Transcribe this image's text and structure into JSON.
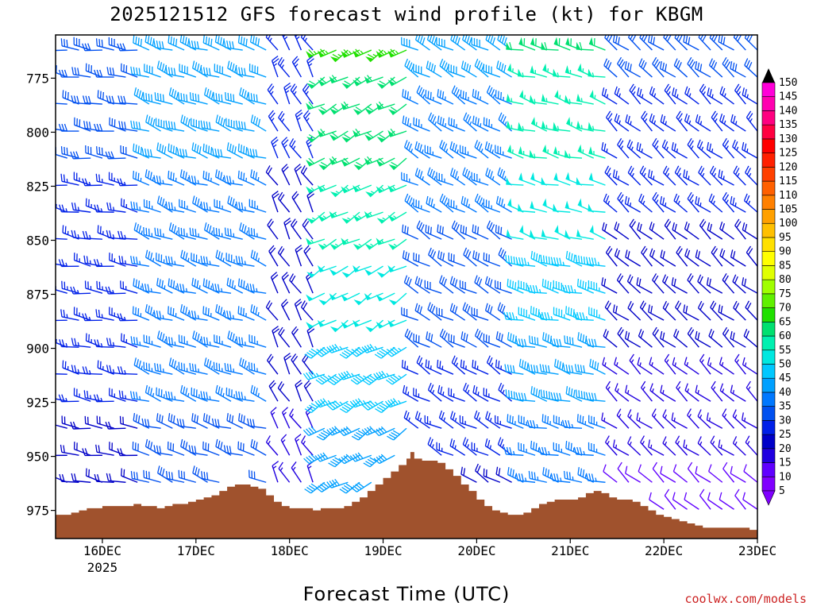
{
  "title": "2025121512 GFS forecast wind profile (kt) for KBGM",
  "xlabel": "Forecast Time (UTC)",
  "credit": "coolwx.com/models",
  "chart_data": {
    "type": "wind-barb-profile",
    "units": "kt",
    "x_ticks": [
      {
        "label": "16DEC",
        "sublabel": "2025",
        "t": 12
      },
      {
        "label": "17DEC",
        "t": 36
      },
      {
        "label": "18DEC",
        "t": 60
      },
      {
        "label": "19DEC",
        "t": 84
      },
      {
        "label": "20DEC",
        "t": 108
      },
      {
        "label": "21DEC",
        "t": 132
      },
      {
        "label": "22DEC",
        "t": 156
      },
      {
        "label": "23DEC",
        "t": 180
      }
    ],
    "x_range_hours": [
      0,
      180
    ],
    "y_ticks": [
      775,
      800,
      825,
      850,
      875,
      900,
      925,
      950,
      975
    ],
    "y_range_hpa": [
      755,
      988
    ],
    "colorbar": {
      "values": [
        5,
        10,
        15,
        20,
        25,
        30,
        35,
        40,
        45,
        50,
        55,
        60,
        65,
        70,
        75,
        80,
        85,
        90,
        95,
        100,
        105,
        110,
        115,
        120,
        125,
        130,
        135,
        140,
        145,
        150
      ],
      "colors": [
        "#8000ff",
        "#6000ff",
        "#2000e0",
        "#0000c8",
        "#0020e8",
        "#0050f0",
        "#0078ff",
        "#00a0ff",
        "#00c8ff",
        "#00e8e0",
        "#00f0b0",
        "#00e070",
        "#20e000",
        "#60f000",
        "#a0ff00",
        "#e0ff00",
        "#ffff00",
        "#ffe000",
        "#ffc000",
        "#ffa000",
        "#ff8000",
        "#ff6000",
        "#ff4000",
        "#ff2000",
        "#ff0000",
        "#ff0040",
        "#ff0080",
        "#ff00b0",
        "#ff00d8",
        "#ff40ff"
      ]
    },
    "terrain_color": "#a0522d",
    "terrain_hpa": [
      [
        0,
        977
      ],
      [
        2,
        977
      ],
      [
        4,
        976
      ],
      [
        6,
        975
      ],
      [
        8,
        974
      ],
      [
        10,
        974
      ],
      [
        12,
        973
      ],
      [
        14,
        973
      ],
      [
        16,
        973
      ],
      [
        18,
        973
      ],
      [
        20,
        972
      ],
      [
        22,
        973
      ],
      [
        24,
        973
      ],
      [
        26,
        974
      ],
      [
        28,
        973
      ],
      [
        30,
        972
      ],
      [
        32,
        972
      ],
      [
        34,
        971
      ],
      [
        36,
        970
      ],
      [
        38,
        969
      ],
      [
        40,
        968
      ],
      [
        42,
        966
      ],
      [
        44,
        964
      ],
      [
        46,
        963
      ],
      [
        48,
        963
      ],
      [
        50,
        964
      ],
      [
        52,
        965
      ],
      [
        54,
        968
      ],
      [
        56,
        971
      ],
      [
        58,
        973
      ],
      [
        60,
        974
      ],
      [
        62,
        974
      ],
      [
        64,
        974
      ],
      [
        66,
        975
      ],
      [
        68,
        974
      ],
      [
        70,
        974
      ],
      [
        72,
        974
      ],
      [
        74,
        973
      ],
      [
        76,
        971
      ],
      [
        78,
        969
      ],
      [
        80,
        966
      ],
      [
        82,
        963
      ],
      [
        84,
        960
      ],
      [
        86,
        957
      ],
      [
        88,
        954
      ],
      [
        90,
        951
      ],
      [
        91,
        948
      ],
      [
        92,
        951
      ],
      [
        94,
        952
      ],
      [
        96,
        952
      ],
      [
        98,
        953
      ],
      [
        100,
        956
      ],
      [
        102,
        959
      ],
      [
        104,
        963
      ],
      [
        106,
        966
      ],
      [
        108,
        970
      ],
      [
        110,
        973
      ],
      [
        112,
        975
      ],
      [
        114,
        976
      ],
      [
        116,
        977
      ],
      [
        118,
        977
      ],
      [
        120,
        976
      ],
      [
        122,
        974
      ],
      [
        124,
        972
      ],
      [
        126,
        971
      ],
      [
        128,
        970
      ],
      [
        130,
        970
      ],
      [
        132,
        970
      ],
      [
        134,
        969
      ],
      [
        136,
        967
      ],
      [
        138,
        966
      ],
      [
        140,
        967
      ],
      [
        142,
        969
      ],
      [
        144,
        970
      ],
      [
        146,
        970
      ],
      [
        148,
        971
      ],
      [
        150,
        973
      ],
      [
        152,
        975
      ],
      [
        154,
        977
      ],
      [
        156,
        978
      ],
      [
        158,
        979
      ],
      [
        160,
        980
      ],
      [
        162,
        981
      ],
      [
        164,
        982
      ],
      [
        166,
        983
      ],
      [
        168,
        983
      ],
      [
        170,
        983
      ],
      [
        172,
        983
      ],
      [
        174,
        983
      ],
      [
        176,
        983
      ],
      [
        178,
        984
      ],
      [
        180,
        984
      ]
    ],
    "wind_regimes": [
      {
        "t_from": 0,
        "t_to": 24,
        "direction_deg": 280,
        "speed_top_kt": 30,
        "speed_bottom_kt": 20
      },
      {
        "t_from": 24,
        "t_to": 56,
        "direction_deg": 290,
        "speed_top_kt": 40,
        "speed_bottom_kt": 30
      },
      {
        "t_from": 56,
        "t_to": 68,
        "direction_deg": 330,
        "speed_top_kt": 25,
        "speed_bottom_kt": 15
      },
      {
        "t_from": 68,
        "t_to": 92,
        "direction_deg": 240,
        "speed_top_kt": 65,
        "speed_bottom_kt": 35
      },
      {
        "t_from": 92,
        "t_to": 118,
        "direction_deg": 300,
        "speed_top_kt": 40,
        "speed_bottom_kt": 20
      },
      {
        "t_from": 118,
        "t_to": 144,
        "direction_deg": 285,
        "speed_top_kt": 60,
        "speed_bottom_kt": 30
      },
      {
        "t_from": 144,
        "t_to": 180,
        "direction_deg": 310,
        "speed_top_kt": 30,
        "speed_bottom_kt": 10
      }
    ]
  }
}
